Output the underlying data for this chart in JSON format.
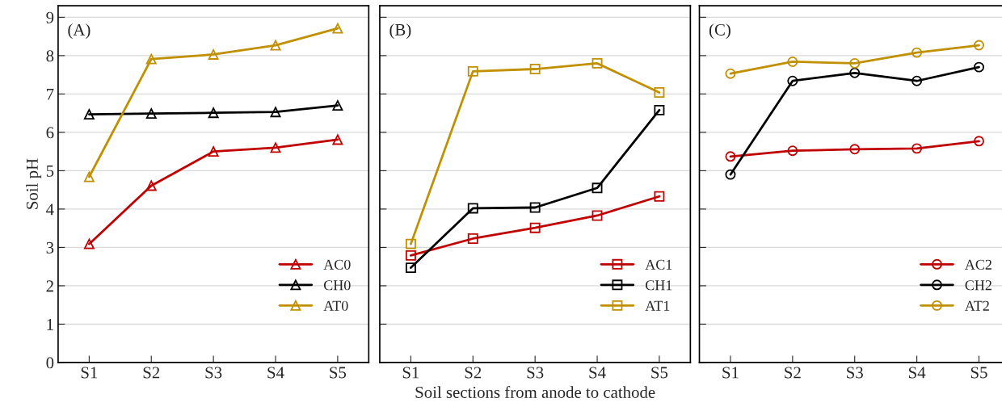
{
  "chart_data": [
    {
      "type": "line",
      "title": "(A)",
      "ylabel": "Soil pH",
      "categories": [
        "S1",
        "S2",
        "S3",
        "S4",
        "S5"
      ],
      "ylim": [
        0,
        9.3
      ],
      "yticks": [
        0,
        1,
        2,
        3,
        4,
        5,
        6,
        7,
        8,
        9
      ],
      "grid": "y",
      "legend": "bottom right",
      "marker": "triangle",
      "series": [
        {
          "name": "AC0",
          "color": "#c00000",
          "values": [
            3.09,
            4.61,
            5.5,
            5.6,
            5.81
          ]
        },
        {
          "name": "CH0",
          "color": "#000000",
          "values": [
            6.47,
            6.49,
            6.51,
            6.53,
            6.7
          ]
        },
        {
          "name": "AT0",
          "color": "#c09000",
          "values": [
            4.84,
            7.91,
            8.03,
            8.27,
            8.71
          ]
        }
      ]
    },
    {
      "type": "line",
      "title": "(B)",
      "xlabel": "Soil sections from anode to cathode",
      "categories": [
        "S1",
        "S2",
        "S3",
        "S4",
        "S5"
      ],
      "ylim": [
        0,
        9.3
      ],
      "yticks": [
        0,
        1,
        2,
        3,
        4,
        5,
        6,
        7,
        8,
        9
      ],
      "tick_labels": "x",
      "grid": "y",
      "legend": "bottom right",
      "marker": "square",
      "series": [
        {
          "name": "AC1",
          "color": "#c00000",
          "values": [
            2.79,
            3.23,
            3.51,
            3.83,
            4.33
          ]
        },
        {
          "name": "CH1",
          "color": "#000000",
          "values": [
            2.47,
            4.02,
            4.04,
            4.55,
            6.58
          ]
        },
        {
          "name": "AT1",
          "color": "#c09000",
          "values": [
            3.09,
            7.59,
            7.65,
            7.8,
            7.04
          ]
        }
      ]
    },
    {
      "type": "line",
      "title": "(C)",
      "categories": [
        "S1",
        "S2",
        "S3",
        "S4",
        "S5"
      ],
      "ylim": [
        0,
        9.3
      ],
      "yticks": [
        0,
        1,
        2,
        3,
        4,
        5,
        6,
        7,
        8,
        9
      ],
      "tick_labels": "x",
      "grid": "y",
      "legend": "bottom right",
      "marker": "circle",
      "series": [
        {
          "name": "AC2",
          "color": "#c00000",
          "values": [
            5.37,
            5.52,
            5.56,
            5.58,
            5.77
          ]
        },
        {
          "name": "CH2",
          "color": "#000000",
          "values": [
            4.9,
            7.34,
            7.55,
            7.34,
            7.7
          ]
        },
        {
          "name": "AT2",
          "color": "#c09000",
          "values": [
            7.53,
            7.84,
            7.8,
            8.08,
            8.27
          ]
        }
      ]
    }
  ]
}
